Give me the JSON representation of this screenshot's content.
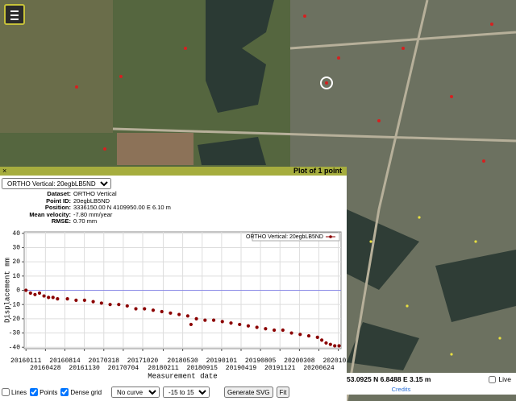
{
  "panel": {
    "close": "×",
    "title": "Plot of 1 point",
    "point_select": "ORTHO Vertical: 20egbLB5ND",
    "info": [
      {
        "label": "Dataset:",
        "value": "ORTHO Vertical"
      },
      {
        "label": "Point ID:",
        "value": "20egbLB5ND"
      },
      {
        "label": "Position:",
        "value": "3336150.00 N 4109950.00 E 6.10 m"
      },
      {
        "label": "Mean velocity:",
        "value": "-7.80 mm/year"
      },
      {
        "label": "RMSE:",
        "value": "0.70 mm"
      }
    ]
  },
  "chart_data": {
    "type": "scatter",
    "ylabel": "Displacement mm",
    "xlabel": "Measurement date",
    "x": [
      "20160111",
      "20160205",
      "20160301",
      "20160326",
      "20160420",
      "20160515",
      "20160609",
      "20160704",
      "20160828",
      "20161015",
      "20161201",
      "20170118",
      "20170305",
      "20170422",
      "20170609",
      "20170726",
      "20170912",
      "20171030",
      "20171217",
      "20180203",
      "20180323",
      "20180510",
      "20180627",
      "20180715",
      "20180814",
      "20181001",
      "20181118",
      "20190105",
      "20190222",
      "20190411",
      "20190529",
      "20190716",
      "20190902",
      "20191020",
      "20191207",
      "20200124",
      "20200312",
      "20200429",
      "20200616",
      "20200710",
      "20200803",
      "20200827",
      "20200920",
      "20201014"
    ],
    "series": [
      {
        "name": "ORTHO Vertical: 20egbLB5ND",
        "color": "#8b0000",
        "values": [
          0,
          -2,
          -3,
          -2,
          -4,
          -5,
          -5,
          -6,
          -6,
          -7,
          -7,
          -8,
          -9,
          -10,
          -10,
          -11,
          -13,
          -13,
          -14,
          -15,
          -16,
          -17,
          -18,
          -24,
          -20,
          -21,
          -21,
          -22,
          -23,
          -24,
          -25,
          -26,
          -27,
          -28,
          -28,
          -30,
          -31,
          -32,
          -33,
          -35,
          -37,
          -38,
          -39,
          -39
        ]
      }
    ],
    "xlim": [
      "20160101",
      "20201025"
    ],
    "ylim": [
      -41,
      41
    ],
    "xticks": [
      "20160111",
      "20160428",
      "20160814",
      "20161130",
      "20170318",
      "20170704",
      "20171020",
      "20180211",
      "20180530",
      "20180915",
      "20190101",
      "20190419",
      "20190805",
      "20191121",
      "20200308",
      "20200624",
      "20201010"
    ],
    "yticks": [
      40,
      30,
      20,
      10,
      0,
      -10,
      -20,
      -30,
      -40
    ],
    "reference_line": {
      "value": 0,
      "color": "#8a8ae6"
    },
    "grid": true,
    "legend": "upper right"
  },
  "controls": {
    "lines": {
      "label": "Lines",
      "checked": false
    },
    "points": {
      "label": "Points",
      "checked": true
    },
    "dense_grid": {
      "label": "Dense grid",
      "checked": true
    },
    "curve_fit": "No curve fit",
    "range": "-15 to 15",
    "generate": "Generate SVG",
    "fit": "Fit"
  },
  "status": {
    "coords": "53.0925 N 6.8488 E 3.15 m",
    "live": "Live",
    "credits": "Credits"
  }
}
